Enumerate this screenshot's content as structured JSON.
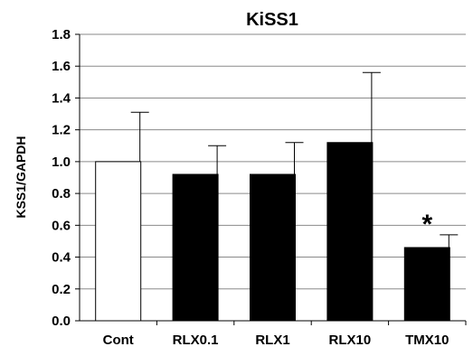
{
  "chart_data": {
    "type": "bar",
    "title": "KiSS1",
    "ylabel": "KSS1/GAPDH",
    "xlabel": "",
    "categories": [
      "Cont",
      "RLX0.1",
      "RLX1",
      "RLX10",
      "TMX10"
    ],
    "values": [
      1.0,
      0.92,
      0.92,
      1.12,
      0.46
    ],
    "error_upper": [
      0.31,
      0.18,
      0.2,
      0.44,
      0.08
    ],
    "bar_colors": [
      "#ffffff",
      "#000000",
      "#000000",
      "#000000",
      "#000000"
    ],
    "annotations": [
      {
        "category": "TMX10",
        "text": "*"
      }
    ],
    "ylim": [
      0,
      1.8
    ],
    "yticks": [
      0.0,
      0.2,
      0.4,
      0.6,
      0.8,
      1.0,
      1.2,
      1.4,
      1.6,
      1.8
    ],
    "ytick_labels": [
      "0.0",
      "0.2",
      "0.4",
      "0.6",
      "0.8",
      "1.0",
      "1.2",
      "1.4",
      "1.6",
      "1.8"
    ],
    "grid": true,
    "legend": "none"
  }
}
